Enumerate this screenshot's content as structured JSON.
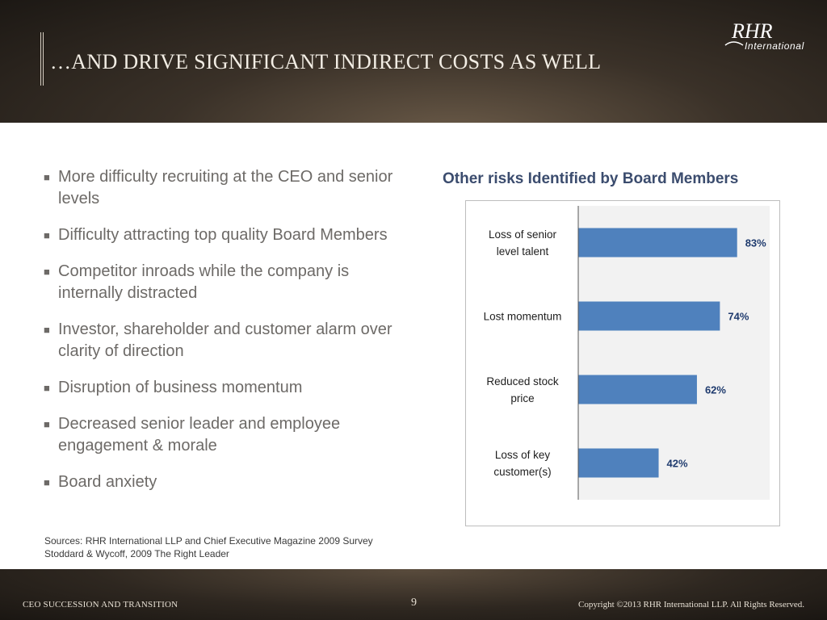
{
  "header": {
    "title": "…AND DRIVE SIGNIFICANT INDIRECT COSTS AS WELL",
    "logo_primary": "RHR",
    "logo_secondary": "International"
  },
  "bullets": [
    "More difficulty recruiting at the CEO and senior levels",
    "Difficulty attracting top quality Board Members",
    "Competitor inroads while the company is internally distracted",
    "Investor, shareholder and customer alarm over clarity of direction",
    "Disruption of business momentum",
    "Decreased senior leader and employee engagement & morale",
    "Board anxiety"
  ],
  "sources": {
    "line1": "Sources: RHR International LLP and Chief Executive  Magazine 2009 Survey",
    "line2": "Stoddard & Wycoff, 2009 The Right Leader"
  },
  "chart_data": {
    "type": "bar",
    "orientation": "horizontal",
    "title": "Other risks Identified by Board Members",
    "categories": [
      [
        "Loss of senior",
        "level talent"
      ],
      [
        "Lost momentum"
      ],
      [
        "Reduced stock",
        "price"
      ],
      [
        "Loss of key",
        "customer(s)"
      ]
    ],
    "values": [
      83,
      74,
      62,
      42
    ],
    "value_labels": [
      "83%",
      "74%",
      "62%",
      "42%"
    ],
    "xlim": [
      0,
      100
    ],
    "unit": "%",
    "grid": false,
    "bar_color": "#4f81bd",
    "label_color": "#1f3b6e",
    "plot_background": "#f2f2f2"
  },
  "footer": {
    "left": "CEO SUCCESSION AND TRANSITION",
    "page": "9",
    "right": "Copyright ©2013 RHR International LLP.   All Rights Reserved."
  }
}
